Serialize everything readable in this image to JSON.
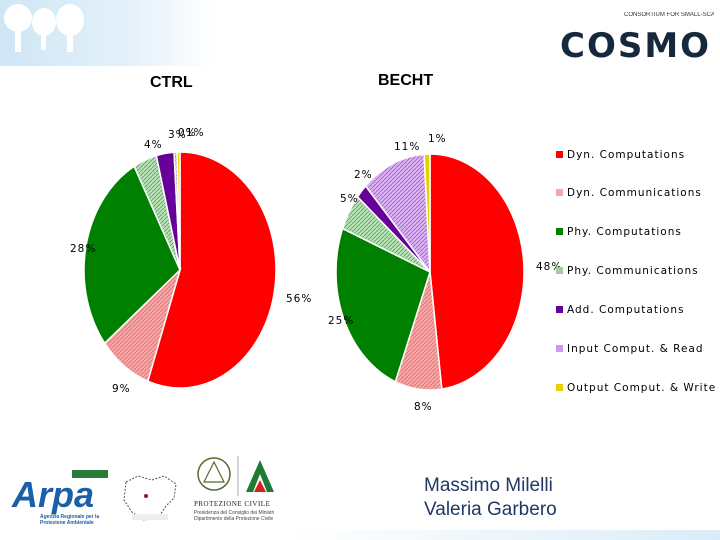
{
  "chart_data": [
    {
      "type": "pie",
      "title": "CTRL",
      "slices": [
        {
          "name": "Dyn. Computations",
          "value": 56,
          "label": "56%",
          "color": "#ff0000"
        },
        {
          "name": "Dyn. Communications",
          "value": 9,
          "label": "9%",
          "color": "#f4a8a8"
        },
        {
          "name": "Phy. Computations",
          "value": 28,
          "label": "28%",
          "color": "#008000"
        },
        {
          "name": "Phy. Communications",
          "value": 4,
          "label": "4%",
          "color": "#9ccf9c"
        },
        {
          "name": "Add. Computations",
          "value": 3,
          "label": "3%",
          "color": "#660099"
        },
        {
          "name": "Input Comput. & Read",
          "value": 0.5,
          "label": "0%",
          "color": "#cc99ee"
        },
        {
          "name": "Output Comput. & Write",
          "value": 0.5,
          "label": "1%",
          "color": "#e8d000"
        }
      ]
    },
    {
      "type": "pie",
      "title": "BECHT",
      "slices": [
        {
          "name": "Dyn. Computations",
          "value": 48,
          "label": "48%",
          "color": "#ff0000"
        },
        {
          "name": "Dyn. Communications",
          "value": 8,
          "label": "8%",
          "color": "#f4a8a8"
        },
        {
          "name": "Phy. Computations",
          "value": 25,
          "label": "25%",
          "color": "#008000"
        },
        {
          "name": "Phy. Communications",
          "value": 5,
          "label": "5%",
          "color": "#9ccf9c"
        },
        {
          "name": "Add. Computations",
          "value": 2,
          "label": "2%",
          "color": "#660099"
        },
        {
          "name": "Input Comput. & Read",
          "value": 11,
          "label": "11%",
          "color": "#cc99ee"
        },
        {
          "name": "Output Comput. & Write",
          "value": 1,
          "label": "1%",
          "color": "#e8d000"
        }
      ]
    }
  ],
  "legend": [
    {
      "label": "Dyn. Computations",
      "color": "#ff0000"
    },
    {
      "label": "Dyn. Communications",
      "color": "#f4a8a8"
    },
    {
      "label": "Phy. Computations",
      "color": "#008000"
    },
    {
      "label": "Phy. Communications",
      "color": "#9ccf9c"
    },
    {
      "label": "Add. Computations",
      "color": "#660099"
    },
    {
      "label": "Input Comput. & Read",
      "color": "#cc99ee"
    },
    {
      "label": "Output Comput. & Write",
      "color": "#e8d000"
    }
  ],
  "header": {
    "cosmo_logo_text": "COSMO",
    "cosmo_consortium_text": "CONSORTIUM FOR SMALL-SCALE MODELING"
  },
  "logos": {
    "arpa": "Arpa",
    "arpa_caption": "Agenzia Regionale per la Protezione Ambientale",
    "protezione_civile": "PROTEZIONE CIVILE",
    "protezione_civile_sub": "Presidenza del Consiglio dei Ministri Dipartimento della Protezione Civile"
  },
  "authors": [
    "Massimo Milelli",
    "Valeria Garbero"
  ]
}
